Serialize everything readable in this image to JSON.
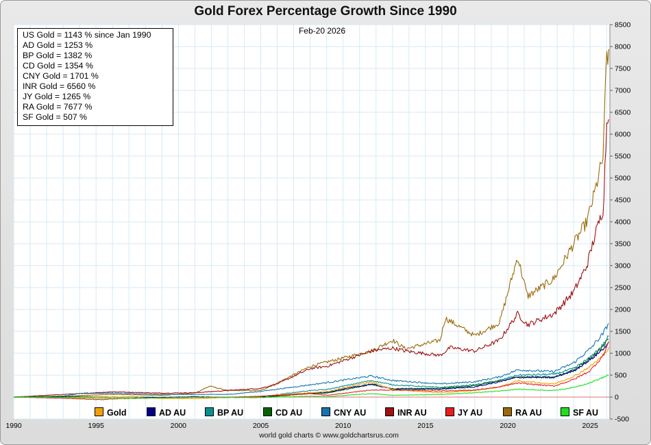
{
  "chart_data": {
    "type": "line",
    "title": "Gold Forex Percentage Growth Since 1990",
    "date": "Feb-20  2026",
    "footer": "world gold charts © www.goldchartsrus.com",
    "x_range": [
      1990,
      2026.2
    ],
    "ylim": [
      -500,
      8500
    ],
    "y_ticks": [
      -500,
      0,
      500,
      1000,
      1500,
      2000,
      2500,
      3000,
      3500,
      4000,
      4500,
      5000,
      5500,
      6000,
      6500,
      7000,
      7500,
      8000,
      8500
    ],
    "x_ticks": [
      1990,
      1995,
      2000,
      2005,
      2010,
      2015,
      2020,
      2025
    ],
    "legend_position": "bottom",
    "info_box": [
      "US Gold = 1143 % since Jan 1990",
      "AD Gold = 1253 %",
      "BP Gold = 1382 %",
      "CD Gold = 1354 %",
      "CNY Gold = 1701 %",
      "INR Gold = 6560 %",
      "JY Gold = 1265 %",
      "RA Gold = 7677 %",
      "SF Gold = 507 %"
    ],
    "series": [
      {
        "name": "Gold",
        "color": "#f5a000",
        "x": [
          1990,
          1993,
          1996,
          1999,
          2001,
          2003,
          2005,
          2006,
          2008,
          2009,
          2011.7,
          2013,
          2015.9,
          2018,
          2019.5,
          2020.6,
          2022.8,
          2024,
          2025,
          2025.8,
          2026.13
        ],
        "values": [
          0,
          -5,
          5,
          -30,
          -35,
          -10,
          15,
          50,
          100,
          120,
          350,
          170,
          100,
          150,
          230,
          370,
          300,
          470,
          700,
          950,
          1143
        ]
      },
      {
        "name": "AD AU",
        "color": "#00008b",
        "x": [
          1990,
          1993,
          1996,
          1999,
          2001,
          2003,
          2005,
          2008,
          2009,
          2011.7,
          2013,
          2015.9,
          2018,
          2019.5,
          2020.6,
          2022.8,
          2024,
          2025,
          2025.8,
          2026.13
        ],
        "values": [
          0,
          5,
          0,
          -10,
          10,
          -10,
          10,
          90,
          110,
          300,
          180,
          180,
          230,
          350,
          450,
          450,
          600,
          850,
          1100,
          1253
        ]
      },
      {
        "name": "BP AU",
        "color": "#0a8f8f",
        "x": [
          1990,
          1993,
          1996,
          1999,
          2001,
          2003,
          2005,
          2008,
          2009,
          2011.7,
          2013,
          2015.9,
          2018,
          2019.5,
          2020.6,
          2022.8,
          2024,
          2025,
          2025.8,
          2026.13
        ],
        "values": [
          0,
          20,
          0,
          -20,
          -5,
          -5,
          10,
          150,
          170,
          380,
          280,
          220,
          280,
          380,
          500,
          520,
          650,
          900,
          1200,
          1382
        ]
      },
      {
        "name": "CD AU",
        "color": "#006400",
        "x": [
          1990,
          1993,
          1996,
          1999,
          2001,
          2003,
          2005,
          2008,
          2009,
          2011.7,
          2013,
          2015.9,
          2018,
          2019.5,
          2020.6,
          2022.8,
          2024,
          2025,
          2025.8,
          2026.13
        ],
        "values": [
          0,
          10,
          0,
          -10,
          0,
          -10,
          -10,
          80,
          90,
          290,
          190,
          200,
          260,
          370,
          460,
          450,
          620,
          880,
          1150,
          1354
        ]
      },
      {
        "name": "CNY AU",
        "color": "#1673ad",
        "x": [
          1990,
          1993,
          1994,
          1996,
          1999,
          2001,
          2003,
          2005,
          2008,
          2009,
          2011.7,
          2013,
          2015.9,
          2018,
          2019.5,
          2020.6,
          2022.8,
          2024,
          2025,
          2025.8,
          2026.13
        ],
        "values": [
          0,
          20,
          80,
          90,
          60,
          60,
          60,
          130,
          280,
          330,
          480,
          380,
          300,
          350,
          460,
          620,
          580,
          780,
          1100,
          1450,
          1701
        ]
      },
      {
        "name": "INR AU",
        "color": "#a01010",
        "x": [
          1990,
          1991.5,
          1993,
          1996,
          1999,
          2001,
          2003,
          2005,
          2006,
          2008,
          2009,
          2011.7,
          2013,
          2013.8,
          2015.9,
          2016.5,
          2018,
          2019.5,
          2020.6,
          2021.2,
          2022.8,
          2024,
          2024.8,
          2025.3,
          2025.8,
          2026,
          2026.13
        ],
        "values": [
          0,
          30,
          60,
          120,
          90,
          100,
          150,
          200,
          300,
          650,
          700,
          1050,
          1120,
          1050,
          950,
          1130,
          1050,
          1300,
          1900,
          1650,
          1900,
          2400,
          3000,
          3700,
          4300,
          6200,
          6560
        ]
      },
      {
        "name": "JY AU",
        "color": "#e62020",
        "x": [
          1990,
          1993,
          1995.3,
          1996,
          1999,
          2001,
          2003,
          2005,
          2008,
          2009,
          2011.7,
          2013,
          2015.9,
          2018,
          2019.5,
          2020.6,
          2022.8,
          2024,
          2025,
          2025.8,
          2026.13
        ],
        "values": [
          0,
          -25,
          -60,
          -40,
          -20,
          0,
          -5,
          20,
          80,
          40,
          160,
          160,
          140,
          160,
          230,
          320,
          250,
          400,
          600,
          950,
          1265
        ]
      },
      {
        "name": "RA AU",
        "color": "#9a6a08",
        "x": [
          1990,
          1993,
          1996,
          1999,
          2001,
          2001.9,
          2003,
          2005,
          2006,
          2008,
          2009,
          2011.7,
          2013,
          2013.8,
          2015.9,
          2016.2,
          2018,
          2019.5,
          2020.6,
          2021.2,
          2022.8,
          2024,
          2024.8,
          2025.3,
          2025.8,
          2026,
          2026.13
        ],
        "values": [
          0,
          20,
          60,
          40,
          90,
          250,
          150,
          150,
          320,
          700,
          800,
          1050,
          1300,
          1100,
          1300,
          1800,
          1400,
          1700,
          3200,
          2300,
          2700,
          3500,
          4000,
          4700,
          5500,
          7900,
          7677
        ]
      },
      {
        "name": "SF AU",
        "color": "#1ee01e",
        "x": [
          1990,
          1993,
          1996,
          1999,
          2001,
          2003,
          2005,
          2008,
          2009,
          2011.7,
          2013,
          2015.9,
          2018,
          2019.5,
          2020.6,
          2022.8,
          2024,
          2025,
          2025.8,
          2026.13
        ],
        "values": [
          0,
          -10,
          -30,
          -20,
          -10,
          -10,
          -10,
          20,
          10,
          80,
          40,
          60,
          100,
          140,
          180,
          150,
          220,
          330,
          450,
          507
        ]
      }
    ]
  }
}
